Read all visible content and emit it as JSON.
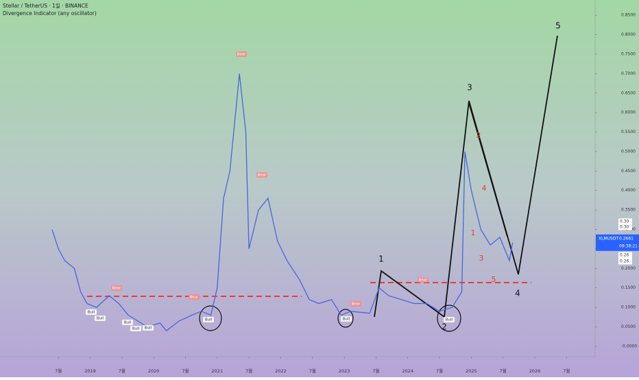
{
  "chart_data": {
    "type": "line",
    "title": "Stellar / TetherUS · 1일 · BINANCE",
    "subtitle": "Divergence Indicator (any oscillator)",
    "x": [
      2018.4,
      2018.5,
      2018.6,
      2018.75,
      2018.85,
      2018.95,
      2019.1,
      2019.3,
      2019.45,
      2019.6,
      2019.75,
      2019.9,
      2020.1,
      2020.2,
      2020.4,
      2020.6,
      2020.75,
      2020.9,
      2021.0,
      2021.1,
      2021.2,
      2021.35,
      2021.45,
      2021.5,
      2021.65,
      2021.8,
      2021.95,
      2022.1,
      2022.3,
      2022.45,
      2022.6,
      2022.8,
      2022.95,
      2023.1,
      2023.4,
      2023.55,
      2023.7,
      2023.9,
      2024.1,
      2024.3,
      2024.5,
      2024.7,
      2024.85,
      2024.9,
      2025.0,
      2025.15,
      2025.3,
      2025.45,
      2025.6,
      2025.65
    ],
    "series": [
      {
        "name": "XLMUSDT",
        "color": "#4a63e0",
        "values": [
          0.3,
          0.25,
          0.22,
          0.2,
          0.14,
          0.11,
          0.1,
          0.13,
          0.11,
          0.08,
          0.065,
          0.05,
          0.06,
          0.04,
          0.065,
          0.08,
          0.09,
          0.08,
          0.15,
          0.38,
          0.45,
          0.7,
          0.55,
          0.25,
          0.35,
          0.38,
          0.27,
          0.22,
          0.17,
          0.12,
          0.11,
          0.12,
          0.08,
          0.09,
          0.085,
          0.15,
          0.13,
          0.12,
          0.11,
          0.11,
          0.09,
          0.1,
          0.14,
          0.5,
          0.4,
          0.3,
          0.26,
          0.28,
          0.22,
          0.2661
        ]
      }
    ],
    "last_price": {
      "symbol": "XLMUSDT",
      "value": 0.2661,
      "label": "0.2661",
      "time": "09:38:21"
    },
    "side_labels": [
      "0.30",
      "0.30",
      "0.26",
      "0.26"
    ],
    "xlim": [
      2017.58,
      2026.95
    ],
    "ylim": [
      -0.0265,
      0.889
    ],
    "yticks": [
      {
        "value": 0,
        "label": "-0.0000"
      },
      {
        "value": 0.05,
        "label": "0.0500"
      },
      {
        "value": 0.1,
        "label": "0.1000"
      },
      {
        "value": 0.15,
        "label": "0.1500"
      },
      {
        "value": 0.2,
        "label": "0.2000"
      },
      {
        "value": 0.25,
        "label": "0.2500"
      },
      {
        "value": 0.3,
        "label": "0.3000"
      },
      {
        "value": 0.35,
        "label": "0.3500"
      },
      {
        "value": 0.4,
        "label": "0.4000"
      },
      {
        "value": 0.45,
        "label": "0.4500"
      },
      {
        "value": 0.5,
        "label": "0.5000"
      },
      {
        "value": 0.55,
        "label": "0.5500"
      },
      {
        "value": 0.6,
        "label": "0.6000"
      },
      {
        "value": 0.65,
        "label": "0.6500"
      },
      {
        "value": 0.7,
        "label": "0.7000"
      },
      {
        "value": 0.75,
        "label": "0.7500"
      },
      {
        "value": 0.8,
        "label": "0.8000"
      },
      {
        "value": 0.85,
        "label": "0.8500"
      }
    ],
    "xticks": [
      {
        "value": 2018.5,
        "label": "7월"
      },
      2019,
      {
        "value": 2019.5,
        "label": "7월"
      },
      2020,
      {
        "value": 2020.5,
        "label": "7월"
      },
      2021,
      {
        "value": 2021.5,
        "label": "7월"
      },
      2022,
      {
        "value": 2022.5,
        "label": "7월"
      },
      2023,
      {
        "value": 2023.5,
        "label": "7월"
      },
      2024,
      {
        "value": 2024.5,
        "label": "7월"
      },
      2025,
      {
        "value": 2025.5,
        "label": "7월"
      },
      2026,
      {
        "value": 2026.5,
        "label": "7월"
      }
    ],
    "wave_labels": [
      "1",
      "2",
      "3",
      "4",
      "5"
    ],
    "sub_wave_labels": [
      "1",
      "2",
      "3",
      "4",
      "5"
    ],
    "annotations": [
      "Bear",
      "Bear",
      "Bear",
      "Bear",
      "Bear",
      "Bear",
      "Bull",
      "Bull",
      "Bull",
      "Bull",
      "Bull",
      "Bull",
      "Bull",
      "Bull"
    ]
  }
}
